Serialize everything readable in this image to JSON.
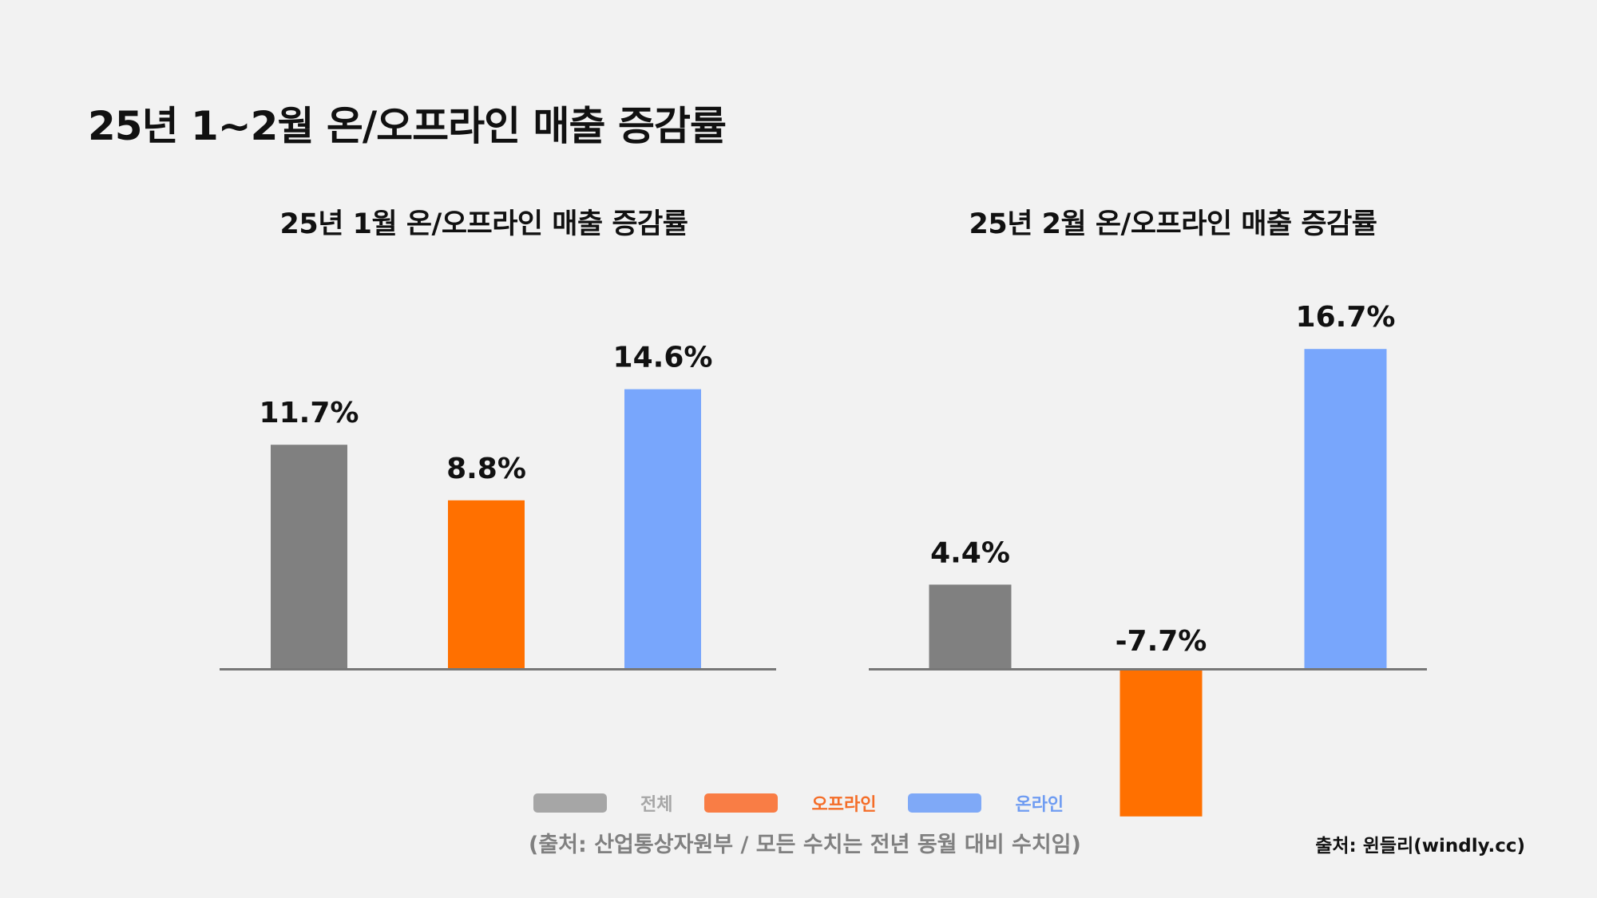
{
  "title": "25년 1~2월 온/오프라인 매출 증감률",
  "footnote": "(출처: 산업통상자원부 / 모든 수치는 전년 동월 대비 수치임)",
  "source": "출처: 윈들리(windly.cc)",
  "legend": [
    {
      "label": "전체",
      "color": "#a6a6a6",
      "text_color": "#a6a6a6"
    },
    {
      "label": "오프라인",
      "color": "#f97d45",
      "text_color": "#f46d28"
    },
    {
      "label": "온라인",
      "color": "#7fa9f7",
      "text_color": "#6f9cf2"
    }
  ],
  "chart_data": [
    {
      "type": "bar",
      "title": "25년 1월 온/오프라인 매출 증감률",
      "categories": [
        "전체",
        "오프라인",
        "온라인"
      ],
      "values": [
        11.7,
        8.8,
        14.6
      ],
      "labels": [
        "11.7%",
        "8.8%",
        "14.6%"
      ],
      "colors": [
        "#808080",
        "#ff7000",
        "#78a6fc"
      ],
      "grid": false
    },
    {
      "type": "bar",
      "title": "25년 2월 온/오프라인 매출 증감률",
      "categories": [
        "전체",
        "오프라인",
        "온라인"
      ],
      "values": [
        4.4,
        -7.7,
        16.7
      ],
      "labels": [
        "4.4%",
        "-7.7%",
        "16.7%"
      ],
      "colors": [
        "#808080",
        "#ff7000",
        "#78a6fc"
      ],
      "grid": false
    }
  ]
}
